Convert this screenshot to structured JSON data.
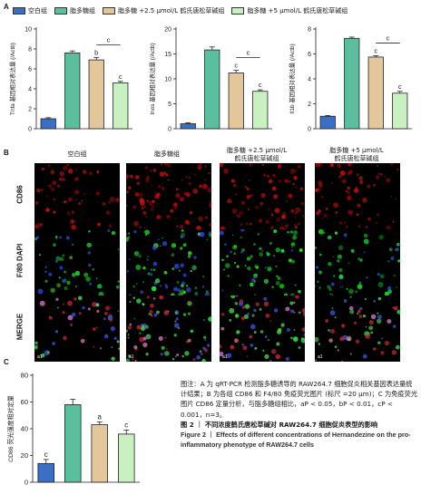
{
  "panels": {
    "a": "A",
    "b": "B",
    "c": "C"
  },
  "legend": [
    {
      "label": "空白组",
      "color": "#3a6fc4"
    },
    {
      "label": "脂多糖组",
      "color": "#5bbf9f"
    },
    {
      "label": "脂多糖 +2.5 μmol/L 鹤氏唐松草碱组",
      "color": "#e3c79a"
    },
    {
      "label": "脂多糖 +5 μmol/L 鹤氏唐松草碱组",
      "color": "#c8f0c0"
    }
  ],
  "colors": {
    "blank": "#3a6fc4",
    "lps": "#5bbf9f",
    "low": "#e3c79a",
    "high": "#c8f0c0"
  },
  "chart_data": [
    {
      "type": "bar",
      "ylabel": "Tnfa 基因相对表达量 (/Actb)",
      "ylim": [
        0,
        10
      ],
      "yticks": [
        "0",
        "2",
        "4",
        "6",
        "8",
        "10"
      ],
      "values": [
        1.0,
        7.6,
        6.9,
        4.6
      ],
      "errors": [
        0.1,
        0.2,
        0.25,
        0.15
      ],
      "letters": [
        "",
        "",
        "b",
        "c"
      ],
      "bracket": "c"
    },
    {
      "type": "bar",
      "ylabel": "Inos 基因相对表达量 (/Actb)",
      "ylim": [
        0,
        20
      ],
      "yticks": [
        "0",
        "5",
        "10",
        "15",
        "20"
      ],
      "values": [
        1.0,
        15.8,
        11.2,
        7.5
      ],
      "errors": [
        0.2,
        0.6,
        0.5,
        0.3
      ],
      "letters": [
        "",
        "",
        "c",
        "c"
      ],
      "bracket": "c"
    },
    {
      "type": "bar",
      "ylabel": "Il1b 基因相对表达量 (/Actb)",
      "ylim": [
        0,
        8
      ],
      "yticks": [
        "0",
        "2",
        "4",
        "6",
        "8"
      ],
      "values": [
        1.0,
        7.25,
        5.75,
        2.85
      ],
      "errors": [
        0.06,
        0.1,
        0.1,
        0.15
      ],
      "letters": [
        "",
        "",
        "c",
        "c"
      ],
      "bracket": "c"
    },
    {
      "type": "bar",
      "ylabel": "CD86 荧光强度相对定量",
      "ylim": [
        0,
        80
      ],
      "yticks": [
        "0",
        "20",
        "40",
        "60",
        "80"
      ],
      "values": [
        14,
        58,
        43,
        36
      ],
      "errors": [
        3,
        4,
        2,
        3
      ],
      "letters": [
        "c",
        "",
        "a",
        "c"
      ],
      "bracket": ""
    }
  ],
  "micro": {
    "col_heads": [
      "空白组",
      "脂多糖组",
      "脂多糖 +2.5 μmol/L\n鹤氏唐松草碱组",
      "脂多糖 +5 μmol/L\n鹤氏唐松草碱组"
    ],
    "rows": [
      "CD86",
      "F/80 DAPI",
      "MERGE"
    ],
    "scale": "a1"
  },
  "caption": {
    "line1": "图注：A 为 qRT-PCR 检测脂多糖诱导的 RAW264.7 细胞促炎相关基因表达量统计结果；B 为各组 CD86 和 F4/80 免疫荧光图片 (标尺 =20 μm)；C 为免疫荧光图片 CD86 定量分析，与脂多糖组相比，",
    "stats": "aP < 0.05，bP < 0.01，cP < 0.001，n=3。",
    "title_cn": "图 2 ｜ 不同浓度鹤氏唐松草碱对 RAW264.7 细胞促炎表型的影响",
    "title_en": "Figure 2 ｜ Effects of different concentrations of Hernandezine on the pro-inflammatory phenotype of RAW264.7 cells"
  }
}
